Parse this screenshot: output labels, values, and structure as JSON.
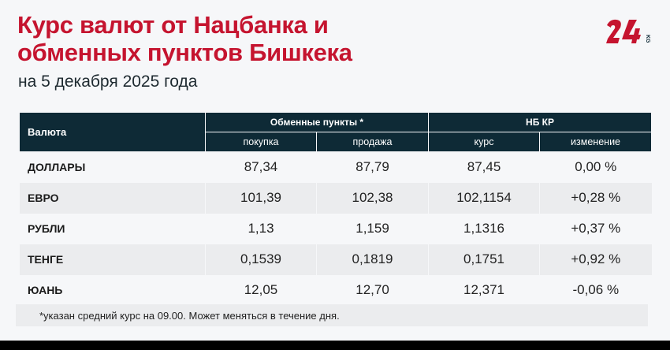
{
  "header": {
    "title_line1": "Курс валют от Нацбанка и",
    "title_line2": "обменных пунктов Бишкека",
    "subtitle": "на 5 декабря 2025 года",
    "logo_text": "24 KG",
    "brand_color": "#c5142f"
  },
  "table": {
    "col_currency": "Валюта",
    "group_exchange": "Обменные пункты *",
    "group_nb": "НБ КР",
    "sub_buy": "покупка",
    "sub_sell": "продажа",
    "sub_rate": "курс",
    "sub_change": "изменение",
    "rows": [
      {
        "name": "ДОЛЛАРЫ",
        "buy": "87,34",
        "sell": "87,79",
        "rate": "87,45",
        "change": "0,00 %"
      },
      {
        "name": "ЕВРО",
        "buy": "101,39",
        "sell": "102,38",
        "rate": "102,1154",
        "change": "+0,28 %"
      },
      {
        "name": "РУБЛИ",
        "buy": "1,13",
        "sell": "1,159",
        "rate": "1,1316",
        "change": "+0,37 %"
      },
      {
        "name": "ТЕНГЕ",
        "buy": "0,1539",
        "sell": "0,1819",
        "rate": "0,1751",
        "change": "+0,92 %"
      },
      {
        "name": "ЮАНЬ",
        "buy": "12,05",
        "sell": "12,70",
        "rate": "12,371",
        "change": "-0,06 %"
      }
    ]
  },
  "footnote": "*указан средний курс на 09.00. Может меняться в течение дня."
}
